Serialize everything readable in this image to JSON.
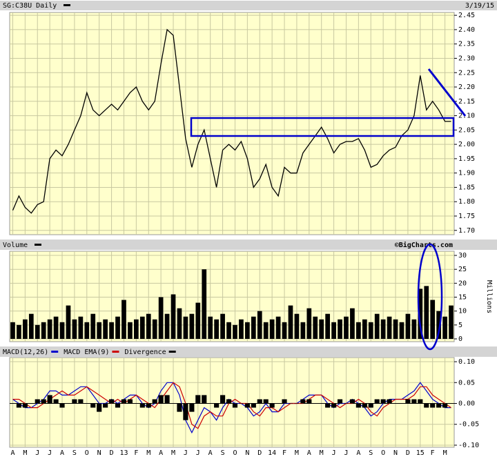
{
  "chart_data": [
    {
      "type": "line",
      "title": "SG:C38U Daily",
      "date": "3/19/15",
      "color": "#000000",
      "grid": true,
      "ylim": [
        1.685,
        2.46
      ],
      "yticks": [
        {
          "value": 1.7,
          "label": "1.70"
        },
        1.75,
        {
          "value": 1.8,
          "label": "1.80"
        },
        1.85,
        {
          "value": 1.9,
          "label": "1.90"
        },
        1.95,
        {
          "value": 2.0,
          "label": "2.00"
        },
        2.05,
        {
          "value": 2.1,
          "label": "2.10"
        },
        2.15,
        {
          "value": 2.2,
          "label": "2.20"
        },
        2.25,
        {
          "value": 2.3,
          "label": "2.30"
        },
        2.35,
        {
          "value": 2.4,
          "label": "2.40"
        },
        2.45
      ],
      "values": [
        1.77,
        1.82,
        1.78,
        1.76,
        1.79,
        1.8,
        1.95,
        1.98,
        1.96,
        2.0,
        2.05,
        2.1,
        2.18,
        2.12,
        2.1,
        2.12,
        2.14,
        2.12,
        2.15,
        2.18,
        2.2,
        2.15,
        2.12,
        2.15,
        2.28,
        2.4,
        2.38,
        2.2,
        2.02,
        1.92,
        2.0,
        2.05,
        1.95,
        1.85,
        1.98,
        2.0,
        1.98,
        2.01,
        1.95,
        1.85,
        1.88,
        1.93,
        1.85,
        1.82,
        1.92,
        1.9,
        1.9,
        1.97,
        2.0,
        2.03,
        2.06,
        2.02,
        1.97,
        2.0,
        2.01,
        2.01,
        2.02,
        1.98,
        1.92,
        1.93,
        1.96,
        1.98,
        1.99,
        2.03,
        2.05,
        2.1,
        2.24,
        2.12,
        2.15,
        2.12,
        2.08,
        2.08
      ]
    },
    {
      "type": "bar",
      "title": "Volume",
      "ylabel": "Millions",
      "watermark": "©BigCharts.com",
      "color": "#000000",
      "grid": true,
      "ylim": [
        -1,
        31.5
      ],
      "yticks": [
        0,
        5,
        10,
        15,
        20,
        25,
        30
      ],
      "values": [
        6,
        5,
        7,
        9,
        5,
        6,
        7,
        8,
        6,
        12,
        7,
        8,
        6,
        9,
        6,
        7,
        6,
        8,
        14,
        6,
        7,
        8,
        9,
        7,
        15,
        9,
        16,
        11,
        8,
        9,
        13,
        25,
        8,
        7,
        9,
        6,
        5,
        7,
        6,
        8,
        10,
        6,
        7,
        8,
        6,
        12,
        9,
        6,
        11,
        8,
        7,
        9,
        6,
        7,
        8,
        11,
        6,
        7,
        6,
        9,
        7,
        8,
        7,
        6,
        9,
        7,
        18,
        19,
        14,
        10,
        8,
        12
      ]
    },
    {
      "type": "line",
      "grid": true,
      "ylim": [
        -0.105,
        0.11
      ],
      "yticks": [
        {
          "value": -0.1,
          "label": "-0.10"
        },
        -0.05,
        {
          "value": 0,
          "label": "0.00"
        },
        0.05,
        {
          "value": 0.1,
          "label": "0.10"
        }
      ],
      "categories": [
        "A",
        null,
        "M",
        null,
        "J",
        null,
        "J",
        null,
        "A",
        null,
        "S",
        null,
        "O",
        null,
        "N",
        null,
        "D",
        null,
        "13",
        null,
        "F",
        null,
        "M",
        null,
        "A",
        null,
        "M",
        null,
        "J",
        null,
        "J",
        null,
        "A",
        null,
        "S",
        null,
        "O",
        null,
        "N",
        null,
        "D",
        null,
        "14",
        null,
        "F",
        null,
        "M",
        null,
        "A",
        null,
        "M",
        null,
        "J",
        null,
        "J",
        null,
        "A",
        null,
        "S",
        null,
        "O",
        null,
        "N",
        null,
        "D",
        null,
        "15",
        null,
        "F",
        null,
        "M",
        null
      ],
      "series": [
        {
          "name": "MACD(12,26)",
          "color": "#0000cc",
          "values": [
            0.01,
            0.0,
            -0.01,
            -0.01,
            0.0,
            0.01,
            0.03,
            0.03,
            0.02,
            0.02,
            0.03,
            0.04,
            0.04,
            0.02,
            0.0,
            0.0,
            0.01,
            0.0,
            0.01,
            0.02,
            0.02,
            0.0,
            -0.01,
            0.0,
            0.03,
            0.05,
            0.05,
            0.02,
            -0.04,
            -0.07,
            -0.04,
            -0.01,
            -0.02,
            -0.04,
            -0.01,
            0.01,
            0.0,
            0.0,
            -0.01,
            -0.03,
            -0.02,
            0.0,
            -0.02,
            -0.02,
            0.0,
            0.0,
            0.0,
            0.01,
            0.02,
            0.02,
            0.02,
            0.0,
            -0.01,
            0.0,
            0.0,
            0.01,
            0.0,
            -0.01,
            -0.03,
            -0.02,
            0.0,
            0.01,
            0.01,
            0.01,
            0.02,
            0.03,
            0.05,
            0.03,
            0.01,
            0.0,
            -0.01,
            -0.01
          ]
        },
        {
          "name": "MACD EMA(9)",
          "color": "#cc0000",
          "values": [
            0.01,
            0.01,
            0.0,
            -0.01,
            -0.01,
            0.0,
            0.01,
            0.02,
            0.03,
            0.02,
            0.02,
            0.03,
            0.04,
            0.03,
            0.02,
            0.01,
            0.0,
            0.01,
            0.0,
            0.01,
            0.02,
            0.01,
            0.0,
            -0.01,
            0.01,
            0.03,
            0.05,
            0.04,
            0.0,
            -0.05,
            -0.06,
            -0.03,
            -0.02,
            -0.03,
            -0.03,
            0.0,
            0.01,
            0.0,
            0.0,
            -0.02,
            -0.03,
            -0.01,
            -0.01,
            -0.02,
            -0.01,
            0.0,
            0.0,
            0.0,
            0.01,
            0.02,
            0.02,
            0.01,
            0.0,
            -0.01,
            0.0,
            0.0,
            0.01,
            0.0,
            -0.02,
            -0.03,
            -0.01,
            0.0,
            0.01,
            0.01,
            0.01,
            0.02,
            0.04,
            0.04,
            0.02,
            0.01,
            0.0,
            -0.01
          ]
        },
        {
          "name": "Divergence",
          "color": "#000000",
          "style": "bar",
          "values": [
            0,
            -0.01,
            -0.01,
            0,
            0.01,
            0.01,
            0.02,
            0.01,
            -0.01,
            0,
            0.01,
            0.01,
            0,
            -0.01,
            -0.02,
            -0.01,
            0.01,
            -0.01,
            0.01,
            0.01,
            0,
            -0.01,
            -0.01,
            0.01,
            0.02,
            0.02,
            0,
            -0.02,
            -0.04,
            -0.02,
            0.02,
            0.02,
            0,
            -0.01,
            0.02,
            0.01,
            -0.01,
            0,
            -0.01,
            -0.01,
            0.01,
            0.01,
            -0.01,
            0,
            0.01,
            0,
            0,
            0.01,
            0.01,
            0,
            0,
            -0.01,
            -0.01,
            0.01,
            0,
            0.01,
            -0.01,
            -0.01,
            -0.01,
            0.01,
            0.01,
            0.01,
            0,
            0,
            0.01,
            0.01,
            0.01,
            -0.01,
            -0.01,
            -0.01,
            -0.01,
            0
          ]
        }
      ]
    }
  ]
}
